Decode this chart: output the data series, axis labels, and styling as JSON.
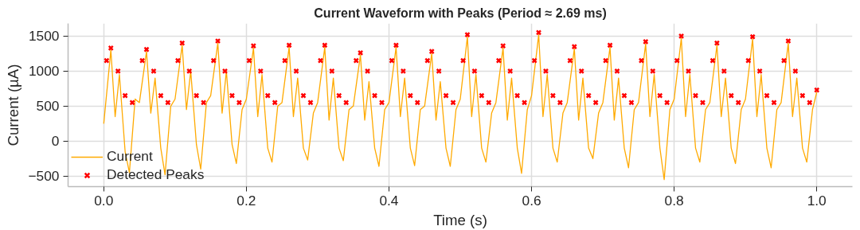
{
  "chart_data": {
    "type": "line",
    "title": "Current Waveform with Peaks (Period ≈ 2.69 ms)",
    "xlabel": "Time (s)",
    "ylabel": "Current (µA)",
    "xlim": [
      -0.05,
      1.05
    ],
    "ylim": [
      -650,
      1680
    ],
    "xticks": [
      {
        "value": 0,
        "label": "0.0"
      },
      0.2,
      0.4,
      0.6,
      0.8,
      {
        "value": 1,
        "label": "1.0"
      }
    ],
    "yticks": [
      {
        "value": -500,
        "label": "−500"
      },
      0,
      500,
      1000,
      1500
    ],
    "grid": true,
    "legend": "bottom left",
    "series": [
      {
        "name": "Current",
        "color": "#ffaa00",
        "line_style": "solid",
        "marker": "none",
        "x": [
          0.0,
          0.01,
          0.016,
          0.022,
          0.03,
          0.036,
          0.044,
          0.05,
          0.06,
          0.066,
          0.072,
          0.08,
          0.086,
          0.094,
          0.1,
          0.11,
          0.116,
          0.122,
          0.13,
          0.136,
          0.144,
          0.15,
          0.16,
          0.166,
          0.172,
          0.18,
          0.186,
          0.194,
          0.2,
          0.21,
          0.216,
          0.222,
          0.23,
          0.236,
          0.244,
          0.25,
          0.26,
          0.266,
          0.272,
          0.28,
          0.286,
          0.294,
          0.3,
          0.31,
          0.316,
          0.322,
          0.33,
          0.336,
          0.344,
          0.35,
          0.36,
          0.366,
          0.372,
          0.38,
          0.386,
          0.394,
          0.4,
          0.41,
          0.416,
          0.422,
          0.43,
          0.436,
          0.444,
          0.45,
          0.46,
          0.466,
          0.472,
          0.48,
          0.486,
          0.494,
          0.5,
          0.51,
          0.516,
          0.522,
          0.53,
          0.536,
          0.544,
          0.55,
          0.56,
          0.566,
          0.572,
          0.58,
          0.586,
          0.594,
          0.6,
          0.61,
          0.616,
          0.622,
          0.63,
          0.636,
          0.644,
          0.65,
          0.66,
          0.666,
          0.672,
          0.68,
          0.686,
          0.694,
          0.7,
          0.71,
          0.716,
          0.722,
          0.73,
          0.736,
          0.744,
          0.75,
          0.76,
          0.766,
          0.772,
          0.78,
          0.786,
          0.794,
          0.8,
          0.81,
          0.816,
          0.822,
          0.83,
          0.836,
          0.844,
          0.85,
          0.86,
          0.866,
          0.872,
          0.88,
          0.886,
          0.894,
          0.9,
          0.91,
          0.916,
          0.922,
          0.93,
          0.936,
          0.944,
          0.95,
          0.96,
          0.966,
          0.972,
          0.98,
          0.986,
          0.994,
          1.0
        ],
        "values": [
          250,
          1300,
          350,
          950,
          -150,
          -450,
          600,
          550,
          1280,
          400,
          900,
          -100,
          -480,
          500,
          600,
          1370,
          450,
          1000,
          -50,
          -400,
          550,
          650,
          1400,
          400,
          1000,
          -50,
          -320,
          450,
          600,
          1330,
          350,
          950,
          -100,
          -300,
          500,
          550,
          1340,
          350,
          900,
          -100,
          -270,
          400,
          550,
          1340,
          300,
          900,
          -100,
          -280,
          450,
          500,
          1230,
          300,
          850,
          -100,
          -360,
          450,
          550,
          1340,
          350,
          900,
          -100,
          -350,
          450,
          500,
          1250,
          300,
          850,
          -100,
          -360,
          450,
          600,
          1490,
          350,
          950,
          -100,
          -300,
          400,
          550,
          1330,
          300,
          900,
          -100,
          -460,
          450,
          650,
          1520,
          350,
          950,
          -100,
          -300,
          400,
          550,
          1320,
          300,
          900,
          -100,
          -250,
          400,
          550,
          1340,
          300,
          900,
          -100,
          -380,
          450,
          550,
          1390,
          350,
          950,
          -100,
          -550,
          450,
          600,
          1470,
          350,
          950,
          -100,
          -300,
          450,
          550,
          1370,
          350,
          900,
          -100,
          -320,
          450,
          600,
          1460,
          350,
          950,
          -100,
          -380,
          450,
          550,
          1400,
          350,
          900,
          -100,
          -300,
          450,
          700
        ]
      },
      {
        "name": "Detected Peaks",
        "type": "scatter",
        "color": "#ff0000",
        "marker": "cross",
        "x": [
          0.004,
          0.01,
          0.02,
          0.03,
          0.04,
          0.054,
          0.06,
          0.07,
          0.08,
          0.09,
          0.104,
          0.11,
          0.12,
          0.13,
          0.14,
          0.154,
          0.16,
          0.17,
          0.18,
          0.19,
          0.204,
          0.21,
          0.22,
          0.23,
          0.24,
          0.254,
          0.26,
          0.27,
          0.28,
          0.29,
          0.304,
          0.31,
          0.32,
          0.33,
          0.34,
          0.354,
          0.36,
          0.37,
          0.38,
          0.39,
          0.404,
          0.41,
          0.42,
          0.43,
          0.44,
          0.454,
          0.46,
          0.47,
          0.48,
          0.49,
          0.504,
          0.51,
          0.52,
          0.53,
          0.54,
          0.554,
          0.56,
          0.57,
          0.58,
          0.59,
          0.604,
          0.61,
          0.62,
          0.63,
          0.64,
          0.654,
          0.66,
          0.67,
          0.68,
          0.69,
          0.704,
          0.71,
          0.72,
          0.73,
          0.74,
          0.754,
          0.76,
          0.77,
          0.78,
          0.79,
          0.804,
          0.81,
          0.82,
          0.83,
          0.84,
          0.854,
          0.86,
          0.87,
          0.88,
          0.89,
          0.904,
          0.91,
          0.92,
          0.93,
          0.94,
          0.954,
          0.96,
          0.97,
          0.98,
          0.99,
          1.0
        ],
        "values": [
          1150,
          1330,
          1000,
          650,
          550,
          1150,
          1310,
          1000,
          650,
          550,
          1150,
          1400,
          1000,
          650,
          550,
          1150,
          1430,
          1000,
          650,
          550,
          1150,
          1360,
          1000,
          650,
          550,
          1150,
          1370,
          1000,
          650,
          550,
          1150,
          1370,
          1000,
          650,
          550,
          1150,
          1260,
          1000,
          650,
          550,
          1150,
          1370,
          1000,
          650,
          550,
          1150,
          1280,
          1000,
          650,
          550,
          1150,
          1520,
          1000,
          650,
          550,
          1150,
          1360,
          1000,
          650,
          550,
          1150,
          1550,
          1000,
          650,
          550,
          1150,
          1350,
          1000,
          650,
          550,
          1150,
          1370,
          1000,
          650,
          550,
          1150,
          1420,
          1000,
          650,
          550,
          1150,
          1500,
          1000,
          650,
          550,
          1150,
          1400,
          1000,
          650,
          550,
          1150,
          1490,
          1000,
          650,
          550,
          1150,
          1430,
          1000,
          650,
          550,
          730
        ]
      }
    ]
  }
}
